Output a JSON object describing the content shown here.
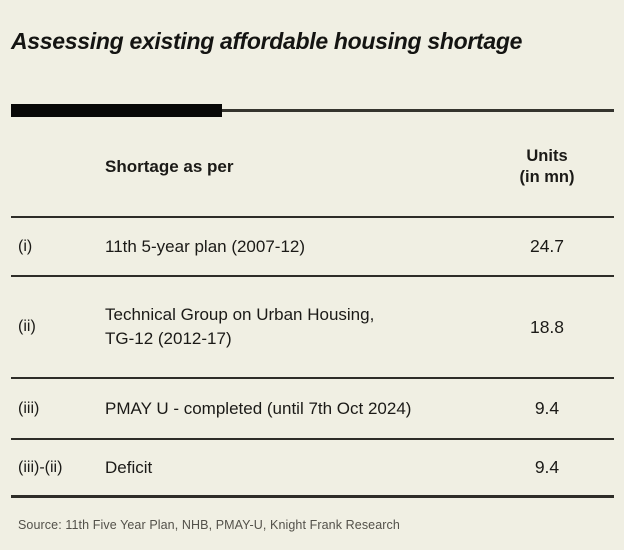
{
  "title": "Assessing existing affordable housing shortage",
  "table": {
    "header": {
      "label": "Shortage as per",
      "units": "Units\n(in mn)"
    },
    "rows": [
      {
        "index": "(i)",
        "label": "11th 5-year plan (2007-12)",
        "value": "24.7"
      },
      {
        "index": "(ii)",
        "label": "Technical Group on Urban Housing,\nTG-12 (2012-17)",
        "value": "18.8"
      },
      {
        "index": "(iii)",
        "label": "PMAY U - completed (until 7th Oct 2024)",
        "value": "9.4"
      },
      {
        "index": "(iii)-(ii)",
        "label": "Deficit",
        "value": "9.4"
      }
    ]
  },
  "source": "Source: 11th Five Year Plan, NHB, PMAY-U, Knight Frank Research",
  "colors": {
    "background": "#f0efe3",
    "text": "#1b1a17",
    "divider": "#2e2d28",
    "accent_bar": "#080807",
    "source_text": "#53514a"
  },
  "chart_data": {
    "type": "table",
    "title": "Assessing existing affordable housing shortage",
    "columns": [
      "",
      "Shortage as per",
      "Units (in mn)"
    ],
    "rows": [
      [
        "(i)",
        "11th 5-year plan (2007-12)",
        24.7
      ],
      [
        "(ii)",
        "Technical Group on Urban Housing, TG-12 (2012-17)",
        18.8
      ],
      [
        "(iii)",
        "PMAY U - completed (until 7th Oct 2024)",
        9.4
      ],
      [
        "(iii)-(ii)",
        "Deficit",
        9.4
      ]
    ],
    "source": "Source: 11th Five Year Plan, NHB, PMAY-U, Knight Frank Research"
  }
}
